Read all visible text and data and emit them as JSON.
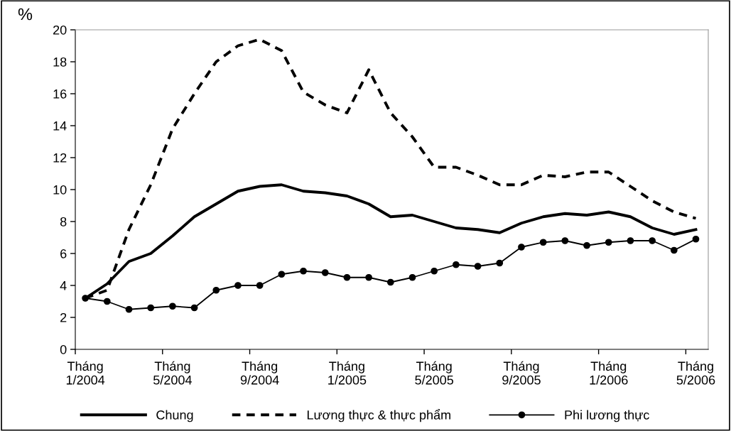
{
  "chart_data": {
    "type": "line",
    "ylabel": "%",
    "categories": [
      "Tháng\n1/2004",
      null,
      null,
      null,
      "Tháng\n5/2004",
      null,
      null,
      null,
      "Tháng\n9/2004",
      null,
      null,
      null,
      "Tháng\n1/2005",
      null,
      null,
      null,
      "Tháng\n5/2005",
      null,
      null,
      null,
      "Tháng\n9/2005",
      null,
      null,
      null,
      "Tháng\n1/2006",
      null,
      null,
      null,
      "Tháng\n5/2006"
    ],
    "series": [
      {
        "name": "Chung",
        "color": "#000000",
        "line_style": "solid",
        "marker": "none",
        "values": [
          3.2,
          4.1,
          5.5,
          6.0,
          7.1,
          8.3,
          9.1,
          9.9,
          10.2,
          10.3,
          9.9,
          9.8,
          9.6,
          9.1,
          8.3,
          8.4,
          8.0,
          7.6,
          7.5,
          7.3,
          7.9,
          8.3,
          8.5,
          8.4,
          8.6,
          8.3,
          7.6,
          7.2,
          7.5
        ]
      },
      {
        "name": "Lương thực & thực phẩm",
        "color": "#000000",
        "line_style": "dashed",
        "marker": "none",
        "values": [
          3.2,
          3.7,
          7.5,
          10.3,
          13.8,
          16.0,
          18.0,
          19.0,
          19.4,
          18.7,
          16.1,
          15.3,
          14.8,
          17.5,
          14.8,
          13.3,
          11.4,
          11.4,
          10.9,
          10.3,
          10.3,
          10.9,
          10.8,
          11.1,
          11.1,
          10.2,
          9.3,
          8.6,
          8.2
        ]
      },
      {
        "name": "Phi lương thực",
        "color": "#000000",
        "line_style": "solid",
        "marker": "circle",
        "values": [
          3.2,
          3.0,
          2.5,
          2.6,
          2.7,
          2.6,
          3.7,
          4.0,
          4.0,
          4.7,
          4.9,
          4.8,
          4.5,
          4.5,
          4.2,
          4.5,
          4.9,
          5.3,
          5.2,
          5.4,
          6.4,
          6.7,
          6.8,
          6.5,
          6.7,
          6.8,
          6.8,
          6.2,
          6.9
        ]
      }
    ],
    "ylim": [
      0,
      20
    ],
    "yticks": [
      0,
      2,
      4,
      6,
      8,
      10,
      12,
      14,
      16,
      18,
      20
    ],
    "grid": false,
    "legend": "bottom"
  }
}
